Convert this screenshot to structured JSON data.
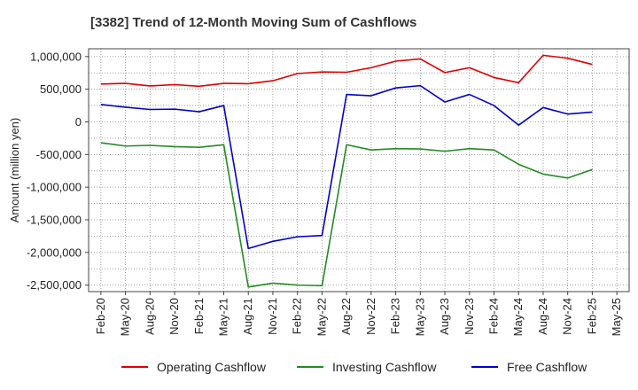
{
  "chart_data": {
    "type": "line",
    "title": "[3382]  Trend of 12-Month Moving Sum of Cashflows",
    "xlabel": "",
    "ylabel": "Amount (million yen)",
    "ylim": [
      -2600000,
      1120000
    ],
    "yticks": [
      1000000,
      500000,
      0,
      -500000,
      -1000000,
      -1500000,
      -2000000,
      -2500000
    ],
    "ytick_labels": [
      "1,000,000",
      "500,000",
      "0",
      "-500,000",
      "-1,000,000",
      "-1,500,000",
      "-2,000,000",
      "-2,500,000"
    ],
    "x_tick_labels": [
      "Feb-20",
      "May-20",
      "Aug-20",
      "Nov-20",
      "Feb-21",
      "May-21",
      "Aug-21",
      "Nov-21",
      "Feb-22",
      "May-22",
      "Aug-22",
      "Nov-22",
      "Feb-23",
      "May-23",
      "Aug-23",
      "Nov-23",
      "Feb-24",
      "May-24",
      "Aug-24",
      "Nov-24",
      "Feb-25",
      "May-25"
    ],
    "x": [
      "Feb-20",
      "May-20",
      "Aug-20",
      "Nov-20",
      "Feb-21",
      "May-21",
      "Aug-21",
      "Nov-21",
      "Feb-22",
      "May-22",
      "Aug-22",
      "Nov-22",
      "Feb-23",
      "May-23",
      "Aug-23",
      "Nov-23",
      "Feb-24",
      "May-24",
      "Aug-24",
      "Nov-24",
      "Feb-25"
    ],
    "grid": true,
    "legend_position": "bottom",
    "series": [
      {
        "name": "Operating Cashflow",
        "color": "#e00000",
        "values": [
          580000,
          590000,
          550000,
          570000,
          545000,
          590000,
          585000,
          630000,
          740000,
          765000,
          760000,
          830000,
          930000,
          965000,
          755000,
          830000,
          680000,
          600000,
          1020000,
          975000,
          880000
        ]
      },
      {
        "name": "Investing Cashflow",
        "color": "#228B22",
        "values": [
          -320000,
          -370000,
          -360000,
          -380000,
          -390000,
          -350000,
          -2530000,
          -2470000,
          -2500000,
          -2510000,
          -350000,
          -430000,
          -410000,
          -415000,
          -450000,
          -410000,
          -430000,
          -650000,
          -800000,
          -860000,
          -730000
        ]
      },
      {
        "name": "Free Cashflow",
        "color": "#0000cc",
        "values": [
          265000,
          225000,
          190000,
          195000,
          155000,
          250000,
          -1940000,
          -1830000,
          -1760000,
          -1740000,
          420000,
          400000,
          520000,
          555000,
          305000,
          420000,
          250000,
          -50000,
          220000,
          120000,
          150000
        ]
      }
    ]
  }
}
